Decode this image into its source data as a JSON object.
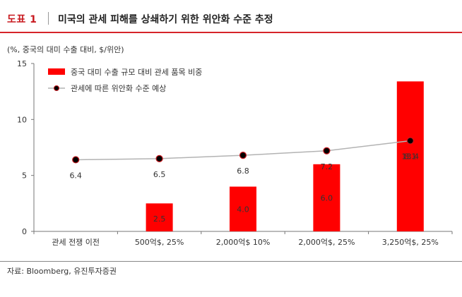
{
  "header": {
    "figure_label": "도표 1",
    "title": "미국의 관세 피해를 상쇄하기 위한 위안화 수준 추정"
  },
  "source": "자료: Bloomberg, 유진투자증권",
  "colors": {
    "accent": "#d6242a",
    "bar": "#ff0000",
    "line": "#b3b3b3",
    "marker": "#000000"
  },
  "chart_data": {
    "type": "bar",
    "unit_label": "(%, 중국의 대미 수출 대비, $/위안)",
    "categories": [
      "관세 전쟁 이전",
      "500억$, 25%",
      "2,000억$ 10%",
      "2,000억$, 25%",
      "3,250억$, 25%"
    ],
    "ylim": [
      0,
      15
    ],
    "yticks": [
      0,
      5,
      10,
      15
    ],
    "grid": false,
    "legend_position": "top-left",
    "series": [
      {
        "name": "중국 대미 수출 규모 대비 관세 품목 비중",
        "type": "bar",
        "values": [
          null,
          2.5,
          4.0,
          6.0,
          13.4
        ],
        "labels": [
          "",
          "2.5",
          "4.0",
          "6.0",
          "13.4"
        ]
      },
      {
        "name": "관세에 따른 위안화 수준 예상",
        "type": "line",
        "values": [
          6.4,
          6.5,
          6.8,
          7.2,
          8.1
        ],
        "labels": [
          "6.4",
          "6.5",
          "6.8",
          "7.2",
          "8.1"
        ]
      }
    ]
  }
}
